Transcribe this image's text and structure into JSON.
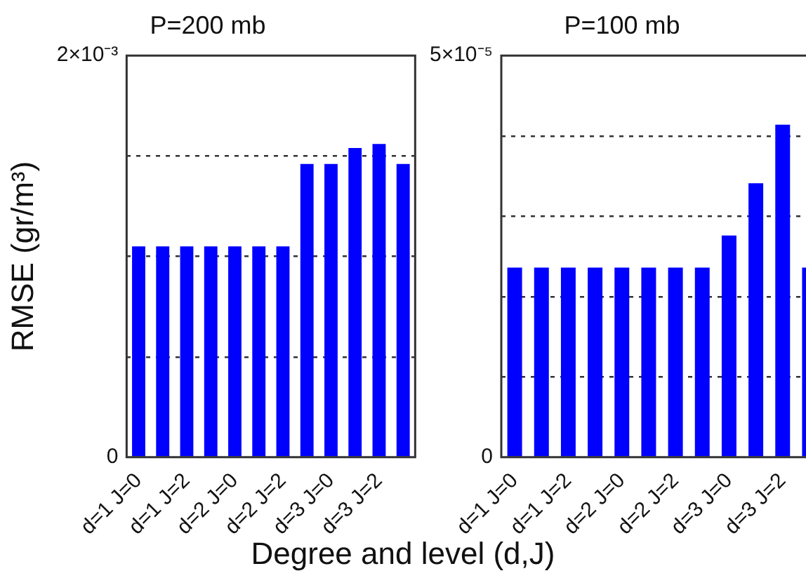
{
  "chart_data": [
    {
      "type": "bar",
      "title": "P=200 mb",
      "ylabel": "RMSE (gr/m³)",
      "xlabel": "Degree and level (d,J)",
      "categories": [
        "d=1 J=0",
        null,
        "d=1 J=2",
        null,
        "d=2 J=0",
        null,
        "d=2 J=2",
        null,
        "d=3 J=0",
        null,
        "d=3 J=2",
        null
      ],
      "values": [
        0.00105,
        0.00105,
        0.00105,
        0.00105,
        0.00105,
        0.00105,
        0.00105,
        0.00146,
        0.00146,
        0.00154,
        0.00156,
        0.00146
      ],
      "color": "#0000ff",
      "ylim": [
        0,
        0.002
      ],
      "yticks": [
        0,
        {
          "value": 0.0005,
          "label": null
        },
        {
          "value": 0.001,
          "label": null
        },
        {
          "value": 0.0015,
          "label": null
        },
        {
          "value": 0.002,
          "label": "2×10⁻³"
        }
      ],
      "grid": "y",
      "line_style": "dashed"
    },
    {
      "type": "bar",
      "title": "P=100 mb",
      "categories": [
        "d=1 J=0",
        null,
        "d=1 J=2",
        null,
        "d=2 J=0",
        null,
        "d=2 J=2",
        null,
        "d=3 J=0",
        null,
        "d=3 J=2",
        null
      ],
      "values": [
        2.36e-05,
        2.36e-05,
        2.36e-05,
        2.36e-05,
        2.36e-05,
        2.36e-05,
        2.36e-05,
        2.36e-05,
        2.76e-05,
        3.41e-05,
        4.14e-05,
        2.36e-05
      ],
      "color": "#0000ff",
      "ylim": [
        0,
        5e-05
      ],
      "yticks": [
        0,
        {
          "value": 1e-05,
          "label": null
        },
        {
          "value": 2e-05,
          "label": null
        },
        {
          "value": 3e-05,
          "label": null
        },
        {
          "value": 4e-05,
          "label": null
        },
        {
          "value": 5e-05,
          "label": "5×10⁻⁵"
        }
      ],
      "grid": "y",
      "line_style": "dashed"
    }
  ]
}
